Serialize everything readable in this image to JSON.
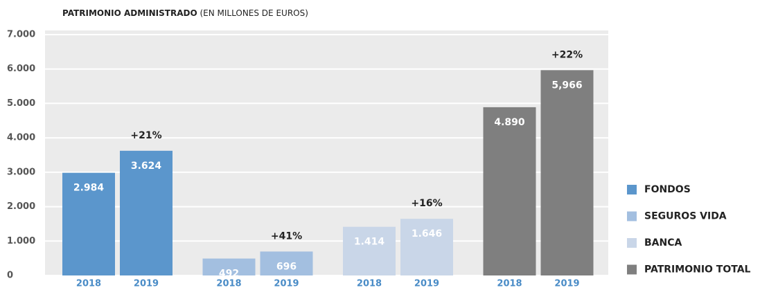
{
  "chart_data": {
    "type": "bar",
    "title": "PATRIMONIO ADMINISTRADO",
    "subtitle": "(EN MILLONES DE EUROS)",
    "categories": [
      "2018",
      "2019"
    ],
    "series": [
      {
        "name": "FONDOS",
        "color": "#5b96cc",
        "values": [
          2984,
          3624
        ],
        "value_labels": [
          "2.984",
          "3.624"
        ],
        "annotation": "+21%"
      },
      {
        "name": "SEGUROS VIDA",
        "color": "#a3bfe0",
        "values": [
          492,
          696
        ],
        "value_labels": [
          "492",
          "696"
        ],
        "annotation": "+41%"
      },
      {
        "name": "BANCA",
        "color": "#c9d6e8",
        "values": [
          1414,
          1646
        ],
        "value_labels": [
          "1.414",
          "1.646"
        ],
        "annotation": "+16%"
      },
      {
        "name": "PATRIMONIO TOTAL",
        "color": "#7f7f7f",
        "values": [
          4890,
          5966
        ],
        "value_labels": [
          "4.890",
          "5,966"
        ],
        "annotation": "+22%"
      }
    ],
    "ylim": [
      0,
      7000
    ],
    "yticks": [
      0,
      {
        "value": 1000,
        "label": "1.000"
      },
      {
        "value": 2000,
        "label": "2.000"
      },
      {
        "value": 3000,
        "label": "3.000"
      },
      {
        "value": 4000,
        "label": "4.000"
      },
      {
        "value": 5000,
        "label": "5.000"
      },
      {
        "value": 6000,
        "label": "6.000"
      },
      {
        "value": 7000,
        "label": "7.000"
      }
    ],
    "grid": true,
    "legend": "right"
  }
}
